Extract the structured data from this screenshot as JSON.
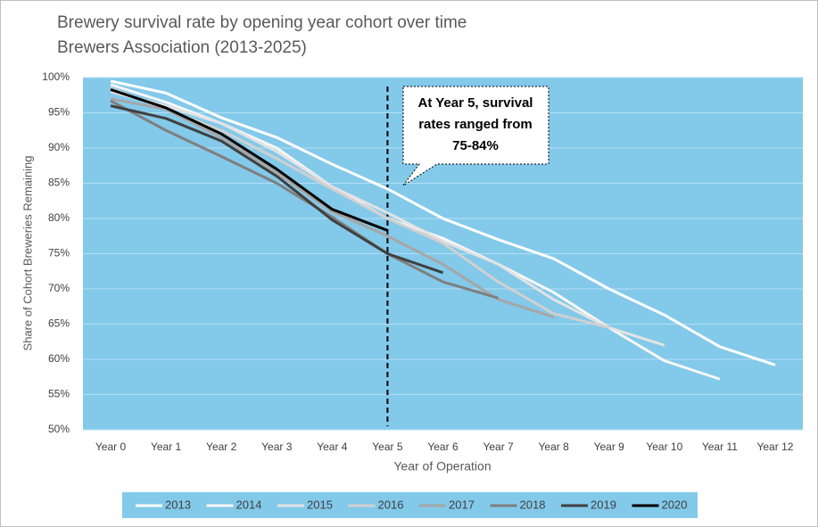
{
  "chart_data": {
    "type": "line",
    "title": "Brewery survival rate by opening year cohort over time",
    "subtitle": "Brewers Association (2013-2025)",
    "x_label": "Year of Operation",
    "y_label": "Share of Cohort Breweries Remaining",
    "categories": [
      "Year 0",
      "Year 1",
      "Year 2",
      "Year 3",
      "Year 4",
      "Year 5",
      "Year 6",
      "Year 7",
      "Year 8",
      "Year 9",
      "Year 10",
      "Year 11",
      "Year 12"
    ],
    "series": [
      {
        "name": "2013",
        "color": "#ffffff",
        "values": [
          99.5,
          97.8,
          94.3,
          91.5,
          87.7,
          84.2,
          80,
          77,
          74.3,
          70,
          66.3,
          61.8,
          59.2
        ]
      },
      {
        "name": "2014",
        "color": "#f7f7f7",
        "values": [
          99,
          96.5,
          93.5,
          90,
          84.5,
          80,
          77.2,
          73.5,
          69.5,
          64.5,
          59.8,
          57.2,
          null
        ]
      },
      {
        "name": "2015",
        "color": "#e3e3e3",
        "values": [
          98,
          96,
          93.5,
          89.5,
          84.5,
          80.8,
          76.8,
          73.5,
          68.5,
          64.5,
          62,
          null,
          null
        ]
      },
      {
        "name": "2016",
        "color": "#d0d0d0",
        "values": [
          98.5,
          95.5,
          92.5,
          88.5,
          84.2,
          80,
          76.5,
          71,
          66.5,
          64.5,
          null,
          null,
          null
        ]
      },
      {
        "name": "2017",
        "color": "#a6a6a6",
        "values": [
          97,
          95.5,
          91.5,
          86.5,
          81,
          77.5,
          73.5,
          68.5,
          66,
          null,
          null,
          null,
          null
        ]
      },
      {
        "name": "2018",
        "color": "#7f7f7f",
        "values": [
          96.7,
          92.5,
          88.8,
          85,
          80.2,
          75,
          71,
          68.7,
          null,
          null,
          null,
          null,
          null
        ]
      },
      {
        "name": "2019",
        "color": "#404040",
        "values": [
          96,
          94.2,
          91,
          86,
          79.8,
          75,
          72.3,
          null,
          null,
          null,
          null,
          null,
          null
        ]
      },
      {
        "name": "2020",
        "color": "#000000",
        "values": [
          98.3,
          95.7,
          92,
          87,
          81.3,
          78.3,
          null,
          null,
          null,
          null,
          null,
          null,
          null
        ]
      }
    ],
    "ylim": [
      50,
      100
    ],
    "yticks": [
      {
        "value": 50,
        "label": "50%"
      },
      {
        "value": 55,
        "label": "55%"
      },
      {
        "value": 60,
        "label": "60%"
      },
      {
        "value": 65,
        "label": "65%"
      },
      {
        "value": 70,
        "label": "70%"
      },
      {
        "value": 75,
        "label": "75%"
      },
      {
        "value": 80,
        "label": "80%"
      },
      {
        "value": 85,
        "label": "85%"
      },
      {
        "value": 90,
        "label": "90%"
      },
      {
        "value": 95,
        "label": "95%"
      },
      {
        "value": 100,
        "label": "100%"
      }
    ],
    "grid": true,
    "legend": "bottom",
    "annotation": [
      "At Year 5, survival",
      "rates ranged from",
      "75-84%"
    ]
  }
}
